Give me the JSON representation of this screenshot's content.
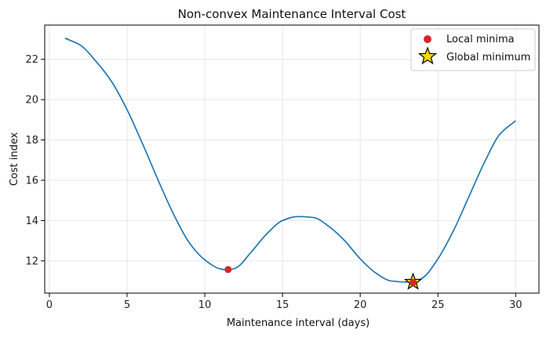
{
  "chart_data": {
    "type": "line",
    "title": "Non-convex Maintenance Interval Cost",
    "xlabel": "Maintenance interval (days)",
    "ylabel": "Cost index",
    "xlim": [
      -0.3,
      31.5
    ],
    "ylim": [
      10.4,
      23.7
    ],
    "xticks": [
      0,
      5,
      10,
      15,
      20,
      25,
      30
    ],
    "yticks": [
      12,
      14,
      16,
      18,
      20,
      22
    ],
    "grid": true,
    "legend_position": "top-right",
    "series": [
      {
        "color": "#1f77b4",
        "x": [
          1,
          2,
          3,
          4,
          5,
          6,
          7,
          8,
          9,
          10,
          11,
          11.5,
          12,
          13,
          14,
          15,
          16,
          17,
          18,
          19,
          20,
          21,
          22,
          23,
          23.4,
          24,
          25,
          26,
          27,
          28,
          29,
          30
        ],
        "y": [
          23.05,
          22.7,
          21.9,
          20.9,
          19.5,
          17.8,
          16.0,
          14.3,
          12.9,
          12.05,
          11.6,
          11.55,
          11.65,
          12.45,
          13.35,
          14.0,
          14.2,
          14.15,
          13.7,
          13.0,
          12.1,
          11.4,
          11.0,
          10.95,
          10.98,
          11.15,
          12.1,
          13.5,
          15.2,
          16.9,
          18.3,
          18.95
        ]
      }
    ],
    "local_minima": {
      "label": "Local minima",
      "color": "#d62728",
      "points": [
        [
          11.5,
          11.57
        ]
      ]
    },
    "global_minimum": {
      "label": "Global minimum",
      "color": "#ffd700",
      "edge_color": "#000000",
      "inner_color": "#d62728",
      "points": [
        [
          23.4,
          10.95
        ]
      ]
    }
  }
}
